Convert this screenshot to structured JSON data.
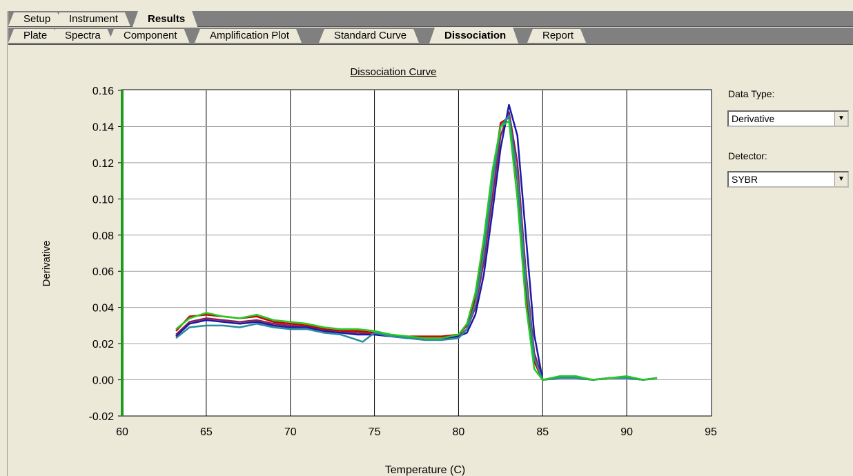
{
  "tabs_top": [
    {
      "label": "Setup"
    },
    {
      "label": "Instrument"
    },
    {
      "label": "Results",
      "active": true
    }
  ],
  "tabs_sub": [
    {
      "label": "Plate"
    },
    {
      "label": "Spectra"
    },
    {
      "label": "Component"
    },
    {
      "label": "Amplification Plot"
    },
    {
      "label": "Standard Curve"
    },
    {
      "label": "Dissociation",
      "active": true
    },
    {
      "label": "Report"
    }
  ],
  "panel": {
    "data_type_label": "Data Type:",
    "data_type_value": "Derivative",
    "detector_label": "Detector:",
    "detector_value": "SYBR"
  },
  "chart_data": {
    "type": "line",
    "title": "Dissociation Curve",
    "xlabel": "Temperature (C)",
    "ylabel": "Derivative",
    "xlim": [
      60,
      95
    ],
    "ylim": [
      -0.02,
      0.16
    ],
    "xticks": [
      "60",
      "65",
      "70",
      "75",
      "80",
      "85",
      "90",
      "95"
    ],
    "yticks": [
      "-0.02",
      "0.00",
      "0.02",
      "0.04",
      "0.06",
      "0.08",
      "0.10",
      "0.12",
      "0.14",
      "0.16"
    ],
    "grid": "vertical",
    "series": [
      {
        "color": "#cc0000",
        "x": [
          63.2,
          64.0,
          65.0,
          66.0,
          67.0,
          68.0,
          69.0,
          70.0,
          71.0,
          72.0,
          73.0,
          74.0,
          75.0,
          76.0,
          77.0,
          78.0,
          79.0,
          80.0,
          80.5,
          81.0,
          81.5,
          82.0,
          82.5,
          83.0,
          83.5,
          84.0,
          84.5,
          85.0,
          86.0,
          87.0,
          88.0,
          89.0,
          90.0,
          91.0,
          91.8
        ],
        "y": [
          0.027,
          0.035,
          0.036,
          0.035,
          0.034,
          0.035,
          0.032,
          0.031,
          0.03,
          0.028,
          0.027,
          0.027,
          0.026,
          0.024,
          0.024,
          0.024,
          0.024,
          0.025,
          0.03,
          0.045,
          0.072,
          0.11,
          0.142,
          0.145,
          0.11,
          0.05,
          0.01,
          0.0,
          0.001,
          0.001,
          0.0,
          0.001,
          0.001,
          0.0,
          0.001
        ]
      },
      {
        "color": "#8b2252",
        "x": [
          63.2,
          64.0,
          65.0,
          66.0,
          67.0,
          68.0,
          69.0,
          70.0,
          71.0,
          72.0,
          73.0,
          74.0,
          75.0,
          76.0,
          77.0,
          78.0,
          79.0,
          80.0,
          80.5,
          81.0,
          81.5,
          82.0,
          82.5,
          83.0,
          83.5,
          84.0,
          84.5,
          85.0,
          86.0,
          87.0,
          88.0,
          89.0,
          90.0,
          91.0,
          91.8
        ],
        "y": [
          0.025,
          0.032,
          0.034,
          0.033,
          0.032,
          0.033,
          0.031,
          0.03,
          0.029,
          0.027,
          0.026,
          0.026,
          0.025,
          0.024,
          0.023,
          0.023,
          0.023,
          0.024,
          0.028,
          0.04,
          0.065,
          0.1,
          0.135,
          0.148,
          0.12,
          0.06,
          0.015,
          0.0,
          0.001,
          0.001,
          0.0,
          0.001,
          0.001,
          0.0,
          0.001
        ]
      },
      {
        "color": "#1a1aa6",
        "x": [
          63.2,
          64.0,
          65.0,
          66.0,
          67.0,
          68.0,
          69.0,
          70.0,
          71.0,
          72.0,
          73.0,
          74.0,
          75.0,
          76.0,
          77.0,
          78.0,
          79.0,
          80.0,
          80.5,
          81.0,
          81.5,
          82.0,
          82.5,
          83.0,
          83.5,
          84.0,
          84.5,
          85.0,
          86.0,
          87.0,
          88.0,
          89.0,
          90.0,
          91.0,
          91.8
        ],
        "y": [
          0.024,
          0.031,
          0.033,
          0.032,
          0.031,
          0.032,
          0.03,
          0.029,
          0.029,
          0.027,
          0.026,
          0.025,
          0.025,
          0.024,
          0.023,
          0.023,
          0.023,
          0.024,
          0.026,
          0.036,
          0.058,
          0.092,
          0.128,
          0.152,
          0.135,
          0.08,
          0.025,
          0.0,
          0.001,
          0.001,
          0.0,
          0.001,
          0.001,
          0.0,
          0.001
        ]
      },
      {
        "color": "#2a8aa0",
        "x": [
          63.2,
          64.0,
          65.0,
          66.0,
          67.0,
          68.0,
          69.0,
          70.0,
          71.0,
          72.0,
          73.0,
          74.0,
          74.3,
          75.0,
          76.0,
          77.0,
          78.0,
          79.0,
          80.0,
          80.5,
          81.0,
          81.5,
          82.0,
          82.5,
          83.0,
          83.5,
          84.0,
          84.5,
          85.0,
          86.0,
          87.0,
          88.0,
          89.0,
          90.0,
          91.0,
          91.8
        ],
        "y": [
          0.023,
          0.029,
          0.03,
          0.03,
          0.029,
          0.031,
          0.029,
          0.028,
          0.028,
          0.026,
          0.025,
          0.022,
          0.021,
          0.026,
          0.024,
          0.023,
          0.022,
          0.022,
          0.023,
          0.028,
          0.042,
          0.07,
          0.108,
          0.14,
          0.146,
          0.112,
          0.055,
          0.012,
          0.0,
          0.001,
          0.001,
          0.0,
          0.001,
          0.001,
          0.0,
          0.001
        ]
      },
      {
        "color": "#22cc22",
        "x": [
          63.2,
          64.0,
          65.0,
          66.0,
          67.0,
          68.0,
          69.0,
          70.0,
          71.0,
          72.0,
          73.0,
          74.0,
          75.0,
          76.0,
          77.0,
          78.0,
          79.0,
          80.0,
          80.5,
          81.0,
          81.5,
          82.0,
          82.5,
          83.0,
          83.5,
          84.0,
          84.5,
          85.0,
          86.0,
          87.0,
          88.0,
          89.0,
          90.0,
          91.0,
          91.8
        ],
        "y": [
          0.028,
          0.034,
          0.037,
          0.035,
          0.034,
          0.036,
          0.033,
          0.032,
          0.031,
          0.029,
          0.028,
          0.028,
          0.027,
          0.025,
          0.024,
          0.023,
          0.023,
          0.025,
          0.031,
          0.048,
          0.078,
          0.115,
          0.14,
          0.143,
          0.1,
          0.042,
          0.006,
          0.0,
          0.002,
          0.002,
          0.0,
          0.001,
          0.002,
          0.0,
          0.001
        ]
      }
    ]
  }
}
